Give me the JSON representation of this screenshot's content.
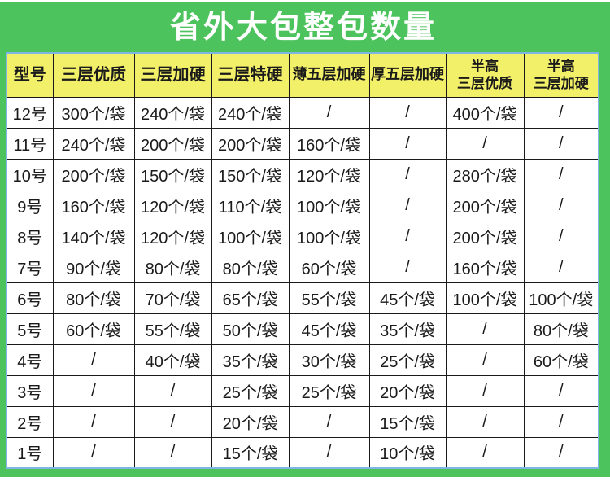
{
  "chart_data": {
    "type": "table",
    "title": "省外大包整包数量",
    "columns": [
      "型号",
      "三层优质",
      "三层加硬",
      "三层特硬",
      "薄五层加硬",
      "厚五层加硬",
      "半高\n三层优质",
      "半高\n三层加硬"
    ],
    "rows": [
      [
        "12号",
        "300个/袋",
        "240个/袋",
        "240个/袋",
        "/",
        "/",
        "400个/袋",
        "/"
      ],
      [
        "11号",
        "240个/袋",
        "200个/袋",
        "200个/袋",
        "160个/袋",
        "/",
        "/",
        "/"
      ],
      [
        "10号",
        "200个/袋",
        "150个/袋",
        "150个/袋",
        "120个/袋",
        "/",
        "280个/袋",
        "/"
      ],
      [
        "9号",
        "160个/袋",
        "120个/袋",
        "110个/袋",
        "100个/袋",
        "/",
        "200个/袋",
        "/"
      ],
      [
        "8号",
        "140个/袋",
        "120个/袋",
        "100个/袋",
        "100个/袋",
        "/",
        "200个/袋",
        "/"
      ],
      [
        "7号",
        "90个/袋",
        "80个/袋",
        "80个/袋",
        "60个/袋",
        "/",
        "160个/袋",
        "/"
      ],
      [
        "6号",
        "80个/袋",
        "70个/袋",
        "65个/袋",
        "55个/袋",
        "45个/袋",
        "100个/袋",
        "100个/袋"
      ],
      [
        "5号",
        "60个/袋",
        "55个/袋",
        "50个/袋",
        "45个/袋",
        "35个/袋",
        "/",
        "80个/袋"
      ],
      [
        "4号",
        "/",
        "40个/袋",
        "35个/袋",
        "30个/袋",
        "25个/袋",
        "/",
        "60个/袋"
      ],
      [
        "3号",
        "/",
        "/",
        "25个/袋",
        "25个/袋",
        "20个/袋",
        "/",
        "/"
      ],
      [
        "2号",
        "/",
        "/",
        "20个/袋",
        "/",
        "15个/袋",
        "/",
        "/"
      ],
      [
        "1号",
        "/",
        "/",
        "15个/袋",
        "/",
        "10个/袋",
        "/",
        "/"
      ]
    ]
  },
  "colors": {
    "banner_green": "#4cc35c",
    "header_yellow": "#f2ef68",
    "table_outline_blue": "#7fb5e5",
    "cell_border": "#1a1a1a",
    "title_text": "#ffffff",
    "cell_text": "#1a1a1a"
  }
}
